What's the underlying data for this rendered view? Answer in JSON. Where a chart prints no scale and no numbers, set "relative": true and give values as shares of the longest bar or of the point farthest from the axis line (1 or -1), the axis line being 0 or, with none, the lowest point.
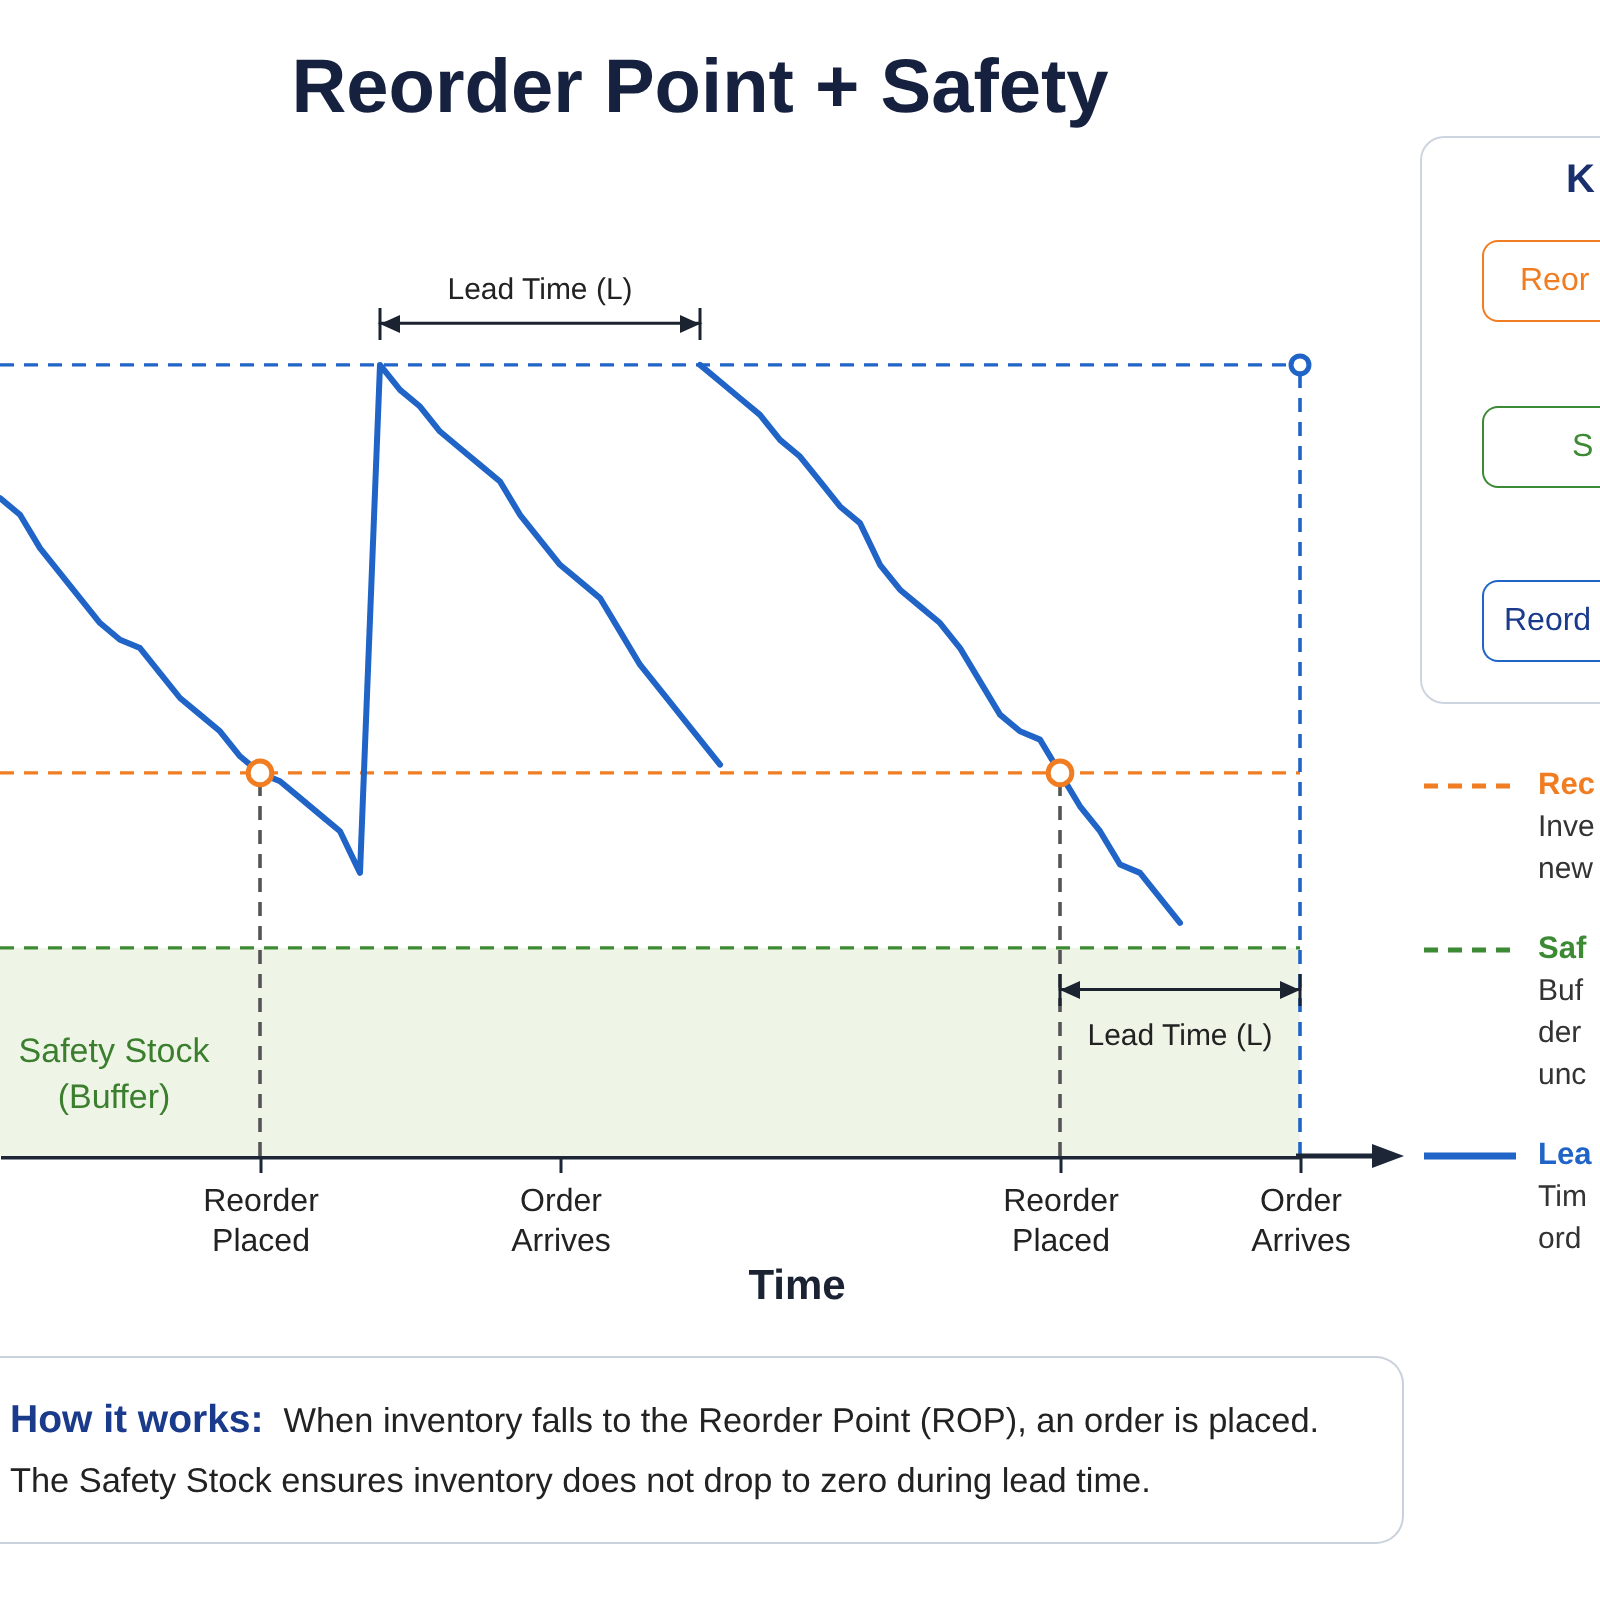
{
  "chart_data": {
    "type": "line",
    "title": "Reorder Point + Safety",
    "xlabel": "Time",
    "relative": true,
    "categories": [
      null,
      null,
      null,
      null,
      null,
      null,
      null,
      null,
      null,
      null,
      null,
      null,
      null,
      "Reorder Placed",
      null,
      null,
      null,
      null,
      null,
      null,
      null,
      null,
      null,
      null,
      null,
      null,
      null,
      null,
      "Order Arrives",
      null,
      null,
      null,
      null,
      null,
      null,
      null,
      null,
      null,
      null,
      null,
      null,
      null,
      null,
      null,
      null,
      null,
      null,
      null,
      null,
      null,
      null,
      null,
      null,
      "Reorder Placed",
      null,
      null,
      null,
      null,
      null,
      null,
      null,
      null,
      null,
      null,
      null,
      "Order Arrives"
    ],
    "series": [
      {
        "name": "Lea",
        "type": "line",
        "color": "#1f64c6",
        "values": [
          0.79,
          0.77,
          0.73,
          0.7,
          0.67,
          0.64,
          0.62,
          0.61,
          0.58,
          0.55,
          0.53,
          0.51,
          0.48,
          0.46,
          0.45,
          0.43,
          0.41,
          0.39,
          0.34,
          0.95,
          0.92,
          0.9,
          0.87,
          0.85,
          0.83,
          0.81,
          0.77,
          0.74,
          0.71,
          0.69,
          0.67,
          0.63,
          0.59,
          0.56,
          0.53,
          0.5,
          0.47,
          null,
          null,
          null,
          null,
          null,
          null,
          null,
          null,
          null,
          null,
          null,
          null,
          null,
          null,
          null,
          null,
          null,
          null,
          null,
          null,
          null,
          null,
          null,
          null,
          null,
          null,
          null,
          null,
          null
        ]
      },
      {
        "type": "line",
        "color": "#1f64c6",
        "values": [
          null,
          null,
          null,
          null,
          null,
          null,
          null,
          null,
          null,
          null,
          null,
          null,
          null,
          null,
          null,
          null,
          null,
          null,
          null,
          null,
          null,
          null,
          null,
          null,
          null,
          null,
          null,
          null,
          null,
          null,
          null,
          null,
          null,
          null,
          null,
          0.95,
          0.93,
          0.91,
          0.89,
          0.86,
          0.84,
          0.81,
          0.78,
          0.76,
          0.71,
          0.68,
          0.66,
          0.64,
          0.61,
          0.57,
          0.53,
          0.51,
          0.5,
          0.46,
          0.42,
          0.39,
          0.35,
          0.34,
          0.31,
          0.28,
          null,
          null,
          null,
          null,
          null,
          null
        ]
      },
      {
        "type": "lollipop",
        "color": "#1f64c6",
        "line_style": "dashed",
        "marker": "circle",
        "values": [
          null,
          null,
          null,
          null,
          null,
          null,
          null,
          null,
          null,
          null,
          null,
          null,
          null,
          null,
          null,
          null,
          null,
          null,
          null,
          null,
          null,
          null,
          null,
          null,
          null,
          null,
          null,
          null,
          null,
          null,
          null,
          null,
          null,
          null,
          null,
          null,
          null,
          null,
          null,
          null,
          null,
          null,
          null,
          null,
          null,
          null,
          null,
          null,
          null,
          null,
          null,
          null,
          null,
          null,
          null,
          null,
          null,
          null,
          null,
          null,
          null,
          null,
          null,
          null,
          null,
          0.95
        ]
      },
      {
        "name": "Lead Time (L)",
        "type": "line",
        "color": "#1b2230",
        "values": [
          null,
          null,
          null,
          null,
          null,
          null,
          null,
          null,
          null,
          null,
          null,
          null,
          null,
          null,
          null,
          null,
          null,
          null,
          null,
          1.0,
          1.0,
          1.0,
          1.0,
          1.0,
          1.0,
          1.0,
          1.0,
          1.0,
          1.0,
          1.0,
          1.0,
          1.0,
          1.0,
          1.0,
          1.0,
          1.0,
          null,
          null,
          null,
          null,
          null,
          null,
          null,
          null,
          null,
          null,
          null,
          null,
          null,
          null,
          null,
          null,
          null,
          null,
          null,
          null,
          null,
          null,
          null,
          null,
          null,
          null,
          null,
          null,
          null,
          null
        ]
      },
      {
        "name": "Lead Time (L)",
        "type": "line",
        "color": "#1b2230",
        "values": [
          null,
          null,
          null,
          null,
          null,
          null,
          null,
          null,
          null,
          null,
          null,
          null,
          null,
          null,
          null,
          null,
          null,
          null,
          null,
          null,
          null,
          null,
          null,
          null,
          null,
          null,
          null,
          null,
          null,
          null,
          null,
          null,
          null,
          null,
          null,
          null,
          null,
          null,
          null,
          null,
          null,
          null,
          null,
          null,
          null,
          null,
          null,
          null,
          null,
          null,
          null,
          null,
          null,
          0.2,
          0.2,
          0.2,
          0.2,
          0.2,
          0.2,
          0.2,
          0.2,
          0.2,
          0.2,
          0.2,
          0.2,
          0.2
        ]
      },
      {
        "type": "lollipop",
        "color": "#555555",
        "line_style": "dashed",
        "marker": "circle",
        "values": [
          null,
          null,
          null,
          null,
          null,
          null,
          null,
          null,
          null,
          null,
          null,
          null,
          null,
          0.46,
          null,
          null,
          null,
          null,
          null,
          null,
          null,
          null,
          null,
          null,
          null,
          null,
          null,
          null,
          null,
          null,
          null,
          null,
          null,
          null,
          null,
          null,
          null,
          null,
          null,
          null,
          null,
          null,
          null,
          null,
          null,
          null,
          null,
          null,
          null,
          null,
          null,
          null,
          null,
          0.46,
          null,
          null,
          null,
          null,
          null,
          null,
          null,
          null,
          null,
          null,
          null,
          null
        ],
        "colors": [
          null,
          null,
          null,
          null,
          null,
          null,
          null,
          null,
          null,
          null,
          null,
          null,
          null,
          "#f07d22",
          null,
          null,
          null,
          null,
          null,
          null,
          null,
          null,
          null,
          null,
          null,
          null,
          null,
          null,
          null,
          null,
          null,
          null,
          null,
          null,
          null,
          null,
          null,
          null,
          null,
          null,
          null,
          null,
          null,
          null,
          null,
          null,
          null,
          null,
          null,
          null,
          null,
          null,
          null,
          "#f07d22",
          null,
          null,
          null,
          null,
          null,
          null,
          null,
          null,
          null,
          null,
          null,
          null
        ]
      }
    ],
    "ref_lines": [
      {
        "axis": "y",
        "value": 0.95,
        "color": "#1f64c6",
        "line_style": "dashed"
      },
      {
        "axis": "y",
        "value": 0.46,
        "label": "Rec",
        "color": "#f07d22",
        "line_style": "dashed"
      },
      {
        "axis": "y",
        "value": 0.25,
        "label": "Saf",
        "color": "#3c8a34",
        "line_style": "dashed"
      }
    ],
    "bands": [
      {
        "axis": "y",
        "from": 0,
        "to": 0.25,
        "label": "Safety Stock\n(Buffer)",
        "color": "#eef5e7"
      }
    ],
    "annotations": [
      "K",
      "Reor",
      "S",
      "Reord",
      "Inve",
      "new",
      "Buf",
      "der",
      "unc",
      "Tim",
      "ord",
      "How it works:",
      "When inventory falls to the Reorder Point (ROP), an order is placed.",
      "The Safety Stock ensures inventory does not drop to zero during lead time."
    ],
    "legend": "right"
  }
}
